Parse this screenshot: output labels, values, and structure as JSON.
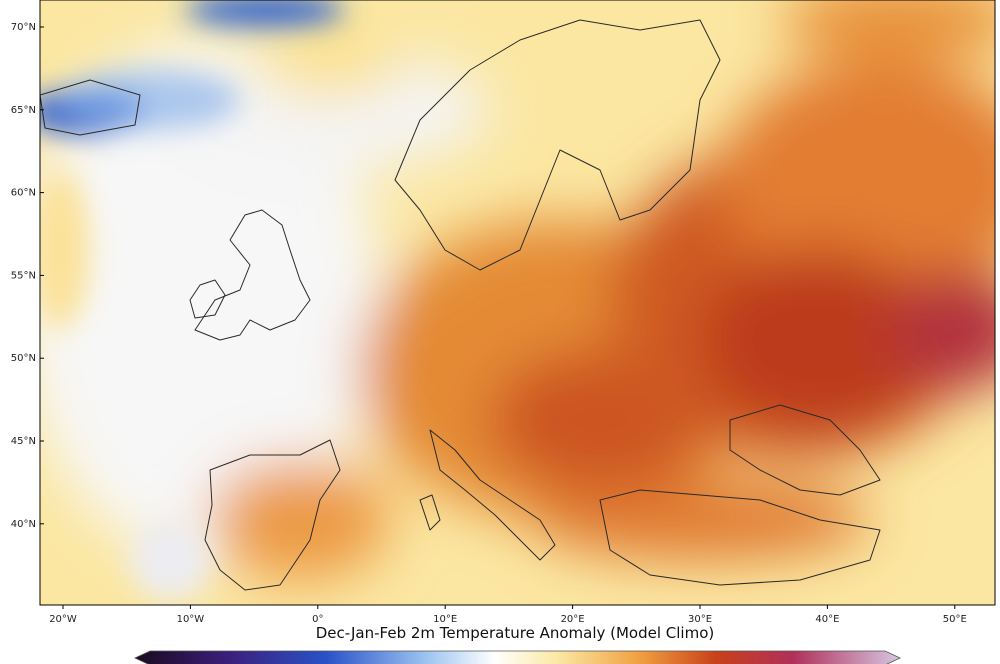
{
  "title": "Dec-Jan-Feb 2m Temperature Anomaly (Model Climo)",
  "lat_labels": [
    "70°N",
    "65°N",
    "60°N",
    "55°N",
    "50°N",
    "45°N",
    "40°N"
  ],
  "lon_labels": [
    "20°W",
    "10°W",
    "0°",
    "10°E",
    "20°E",
    "30°E",
    "40°E",
    "50°E"
  ]
}
